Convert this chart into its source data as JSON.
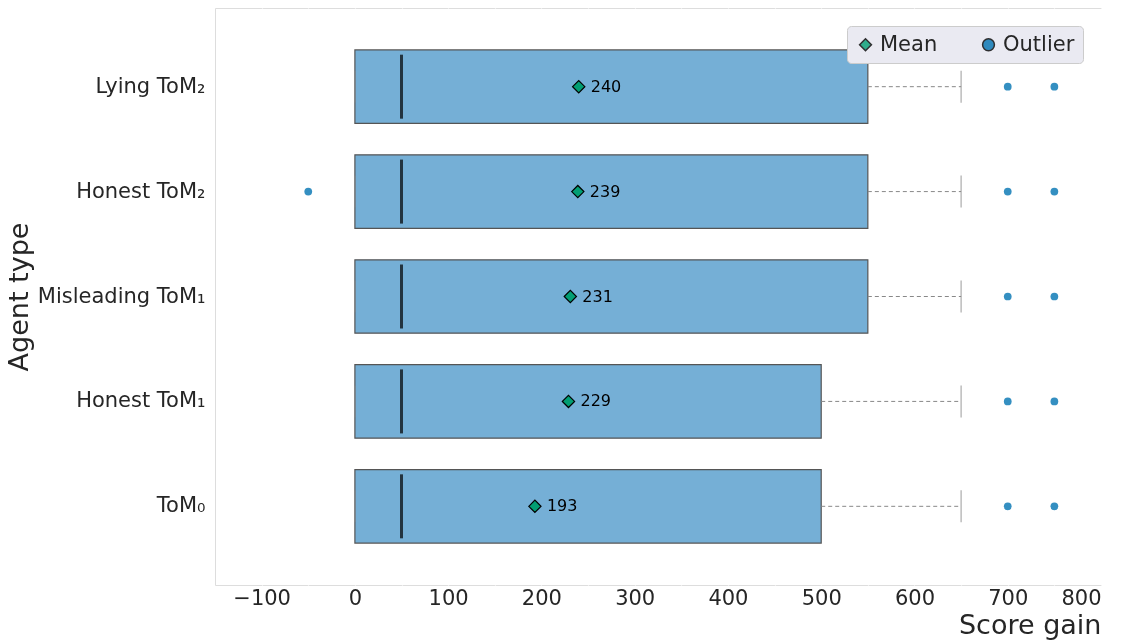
{
  "chart_data": {
    "type": "box",
    "orientation": "horizontal",
    "xlabel": "Score gain",
    "ylabel": "Agent type",
    "categories": [
      "Lying ToM₂",
      "Honest ToM₂",
      "Misleading ToM₁",
      "Honest ToM₁",
      "ToM₀"
    ],
    "color": "#75afd6",
    "boxes": [
      {
        "low": 0,
        "q1": 0,
        "median": 50,
        "q3": 550,
        "high": 650
      },
      {
        "low": 0,
        "q1": 0,
        "median": 50,
        "q3": 550,
        "high": 650
      },
      {
        "low": 0,
        "q1": 0,
        "median": 50,
        "q3": 550,
        "high": 650
      },
      {
        "low": 0,
        "q1": 0,
        "median": 50,
        "q3": 500,
        "high": 650
      },
      {
        "low": 0,
        "q1": 0,
        "median": 50,
        "q3": 500,
        "high": 650
      }
    ],
    "series": [
      {
        "name": "Mean",
        "type": "scatter",
        "color": "#029e73",
        "marker": "diamond",
        "values": [
          240,
          239,
          231,
          229,
          193
        ],
        "value_labels": [
          "240",
          "239",
          "231",
          "229",
          "193"
        ]
      },
      {
        "name": "Outlier",
        "type": "scatter",
        "color": "#0173b2",
        "marker": "circle",
        "x": [
          "Lying ToM₂",
          "Lying ToM₂",
          "Honest ToM₂",
          "Honest ToM₂",
          "Honest ToM₂",
          "Misleading ToM₁",
          "Misleading ToM₁",
          "Honest ToM₁",
          "Honest ToM₁",
          "ToM₀",
          "ToM₀"
        ],
        "values": [
          700,
          750,
          -50,
          700,
          750,
          700,
          750,
          700,
          750,
          700,
          750
        ]
      }
    ],
    "xlim": [
      -150,
      800
    ],
    "xticks": [
      -100,
      {
        "value": -50,
        "label": null
      },
      0,
      {
        "value": 50,
        "label": null
      },
      100,
      {
        "value": 150,
        "label": null
      },
      200,
      {
        "value": 250,
        "label": null
      },
      300,
      {
        "value": 350,
        "label": null
      },
      400,
      {
        "value": 450,
        "label": null
      },
      500,
      {
        "value": 550,
        "label": null
      },
      600,
      {
        "value": 650,
        "label": null
      },
      700,
      {
        "value": 750,
        "label": null
      },
      800
    ],
    "grid": "x",
    "legend": "top right"
  }
}
